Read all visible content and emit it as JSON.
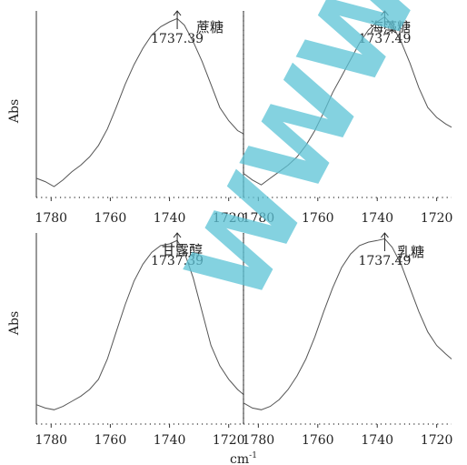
{
  "figure": {
    "ylabel": "Abs",
    "xlabel": "cm",
    "xlabel_sup": "-1",
    "watermark": "WWW"
  },
  "chart_data": [
    {
      "type": "line",
      "name": "蔗糖",
      "peak_label": "1737.39",
      "peak_x": 1737.39,
      "xlim": [
        1785,
        1715
      ],
      "xticks": [
        1780,
        1760,
        1740,
        1720
      ],
      "xtick_labels": [
        "1780",
        "1760",
        "1740",
        "1720"
      ],
      "ylabel": "Abs",
      "x": [
        1785,
        1782,
        1779,
        1776,
        1773,
        1770,
        1767,
        1764,
        1761,
        1758,
        1755,
        1752,
        1749,
        1746,
        1743,
        1740,
        1737.4,
        1735,
        1732,
        1729,
        1726,
        1723,
        1720,
        1717,
        1715
      ],
      "y": [
        0.05,
        0.03,
        0.0,
        0.04,
        0.09,
        0.13,
        0.18,
        0.25,
        0.35,
        0.48,
        0.62,
        0.74,
        0.84,
        0.92,
        0.97,
        1.0,
        1.02,
        0.98,
        0.88,
        0.76,
        0.62,
        0.48,
        0.4,
        0.34,
        0.32
      ]
    },
    {
      "type": "line",
      "name": "海藻糖",
      "peak_label": "1737.49",
      "peak_x": 1737.49,
      "xlim": [
        1785,
        1715
      ],
      "xticks": [
        1780,
        1760,
        1740,
        1720
      ],
      "xtick_labels": [
        "1780",
        "1760",
        "1740",
        "1720"
      ],
      "x": [
        1785,
        1782,
        1779,
        1776,
        1773,
        1770,
        1767,
        1764,
        1761,
        1758,
        1755,
        1752,
        1749,
        1746,
        1743,
        1740,
        1737.5,
        1735,
        1732,
        1729,
        1726,
        1723,
        1720,
        1717,
        1715
      ],
      "y": [
        0.08,
        0.04,
        0.01,
        0.05,
        0.09,
        0.13,
        0.18,
        0.25,
        0.34,
        0.45,
        0.57,
        0.67,
        0.77,
        0.87,
        0.95,
        1.0,
        1.03,
        0.98,
        0.88,
        0.75,
        0.6,
        0.48,
        0.42,
        0.38,
        0.36
      ]
    },
    {
      "type": "line",
      "name": "甘露醇",
      "peak_label": "1737.39",
      "peak_x": 1737.39,
      "xlim": [
        1785,
        1715
      ],
      "xticks": [
        1780,
        1760,
        1740,
        1720
      ],
      "xtick_labels": [
        "1780",
        "1760",
        "1740",
        "1720"
      ],
      "ylabel": "Abs",
      "x": [
        1785,
        1782,
        1779,
        1776,
        1773,
        1770,
        1767,
        1764,
        1761,
        1758,
        1755,
        1752,
        1749,
        1746,
        1743,
        1740,
        1737.4,
        1735,
        1732,
        1729,
        1726,
        1723,
        1720,
        1717,
        1715
      ],
      "y": [
        0.05,
        0.03,
        0.02,
        0.04,
        0.07,
        0.1,
        0.14,
        0.2,
        0.32,
        0.48,
        0.64,
        0.78,
        0.88,
        0.95,
        0.99,
        1.0,
        1.02,
        0.95,
        0.8,
        0.6,
        0.4,
        0.28,
        0.2,
        0.14,
        0.11
      ]
    },
    {
      "type": "line",
      "name": "乳糖",
      "peak_label": "1737.49",
      "peak_x": 1737.49,
      "xlim": [
        1785,
        1715
      ],
      "xticks": [
        1780,
        1760,
        1740,
        1720
      ],
      "xtick_labels": [
        "1780",
        "1760",
        "1740",
        "1720"
      ],
      "x": [
        1785,
        1782,
        1779,
        1776,
        1773,
        1770,
        1767,
        1764,
        1761,
        1758,
        1755,
        1752,
        1749,
        1746,
        1743,
        1740,
        1737.5,
        1735,
        1732,
        1729,
        1726,
        1723,
        1720,
        1717,
        1715
      ],
      "y": [
        0.06,
        0.03,
        0.02,
        0.04,
        0.08,
        0.14,
        0.22,
        0.32,
        0.45,
        0.6,
        0.74,
        0.86,
        0.94,
        0.99,
        1.01,
        1.02,
        1.03,
        0.98,
        0.88,
        0.74,
        0.6,
        0.48,
        0.4,
        0.35,
        0.32
      ]
    }
  ]
}
